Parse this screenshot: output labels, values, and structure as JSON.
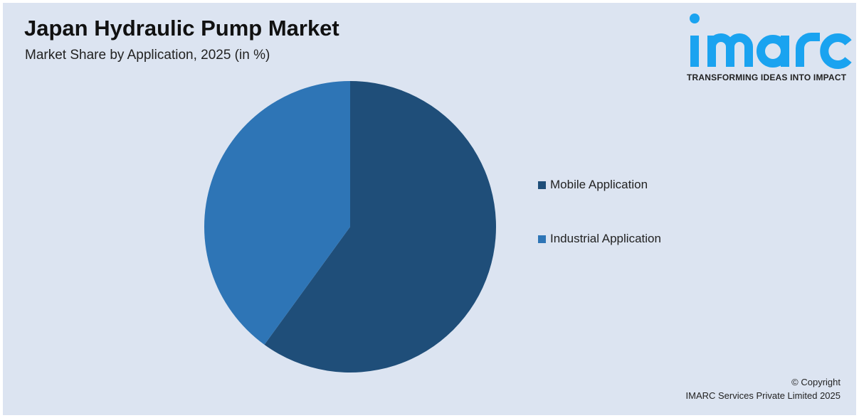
{
  "chart_data": {
    "type": "pie",
    "title": "Japan Hydraulic Pump Market",
    "subtitle": "Market Share by Application, 2025 (in %)",
    "categories": [
      "Mobile Application",
      "Industrial Application"
    ],
    "values": [
      60,
      40
    ],
    "colors": [
      "#1f4e79",
      "#2e75b6"
    ],
    "legend_position": "right"
  },
  "logo": {
    "text": "imarc",
    "tagline": "TRANSFORMING IDEAS INTO IMPACT",
    "color": "#1aa3f0"
  },
  "footer": {
    "copyright": "© Copyright",
    "company": "IMARC Services Private Limited 2025"
  }
}
